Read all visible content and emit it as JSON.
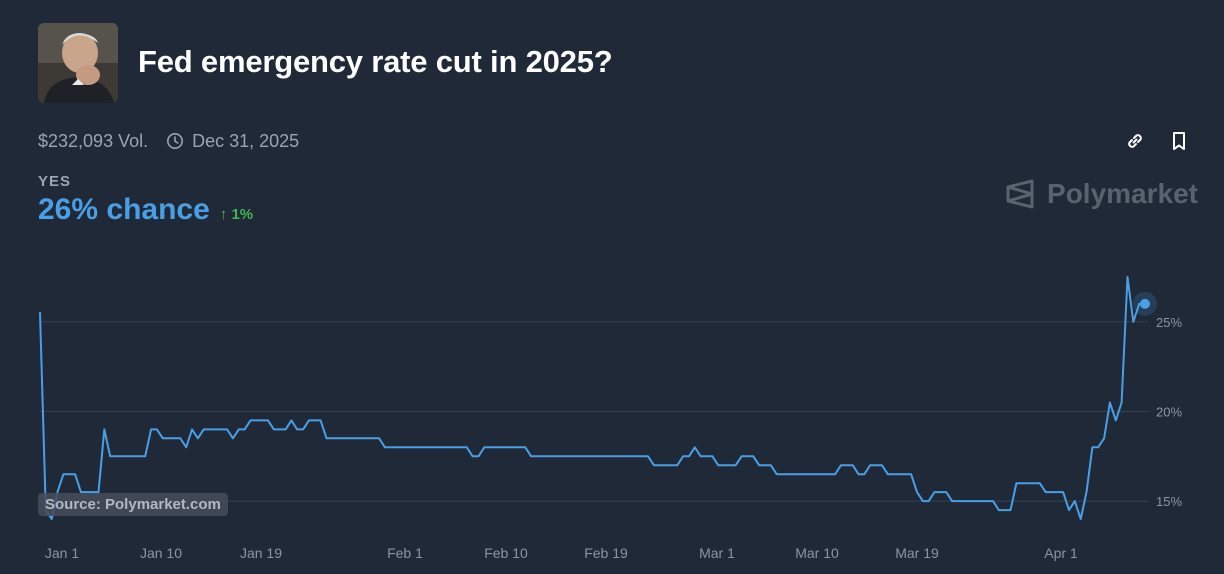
{
  "market": {
    "title": "Fed emergency rate cut in 2025?",
    "volume": "$232,093 Vol.",
    "end_date": "Dec 31, 2025",
    "outcome_label": "YES",
    "chance": "26% chance",
    "change": "1%",
    "change_direction": "up"
  },
  "icons": {
    "avatar": "portrait-photo",
    "clock": "clock-icon",
    "link": "link-icon",
    "bookmark": "bookmark-icon",
    "brand": "polymarket-logo-icon",
    "change_arrow": "arrow-up-icon"
  },
  "brand": {
    "name": "Polymarket"
  },
  "source": "Source: Polymarket.com",
  "colors": {
    "background": "#1f2937",
    "line": "#4a9fe4",
    "positive": "#3fb950",
    "muted": "#9aa4b2"
  },
  "chart_data": {
    "type": "line",
    "x_labels": [
      "Jan 1",
      "Jan 10",
      "Jan 19",
      "Feb 1",
      "Feb 10",
      "Feb 19",
      "Mar 1",
      "Mar 10",
      "Mar 19",
      "Apr 1"
    ],
    "y_ticks": [
      15,
      20,
      25
    ],
    "y_tick_labels": [
      "15%",
      "20%",
      "25%"
    ],
    "ylim": [
      13.5,
      28
    ],
    "grid": true,
    "series": [
      {
        "values": [
          25.5,
          14.5,
          14,
          15.5,
          16.5,
          16.5,
          16.5,
          15.5,
          15.5,
          15.5,
          15.5,
          19,
          17.5,
          17.5,
          17.5,
          17.5,
          17.5,
          17.5,
          17.5,
          19,
          19,
          18.5,
          18.5,
          18.5,
          18.5,
          18,
          19,
          18.5,
          19,
          19,
          19,
          19,
          19,
          18.5,
          19,
          19,
          19.5,
          19.5,
          19.5,
          19.5,
          19,
          19,
          19,
          19.5,
          19,
          19,
          19.5,
          19.5,
          19.5,
          18.5,
          18.5,
          18.5,
          18.5,
          18.5,
          18.5,
          18.5,
          18.5,
          18.5,
          18.5,
          18,
          18,
          18,
          18,
          18,
          18,
          18,
          18,
          18,
          18,
          18,
          18,
          18,
          18,
          18,
          17.5,
          17.5,
          18,
          18,
          18,
          18,
          18,
          18,
          18,
          18,
          17.5,
          17.5,
          17.5,
          17.5,
          17.5,
          17.5,
          17.5,
          17.5,
          17.5,
          17.5,
          17.5,
          17.5,
          17.5,
          17.5,
          17.5,
          17.5,
          17.5,
          17.5,
          17.5,
          17.5,
          17.5,
          17,
          17,
          17,
          17,
          17,
          17.5,
          17.5,
          18,
          17.5,
          17.5,
          17.5,
          17,
          17,
          17,
          17,
          17.5,
          17.5,
          17.5,
          17,
          17,
          17,
          16.5,
          16.5,
          16.5,
          16.5,
          16.5,
          16.5,
          16.5,
          16.5,
          16.5,
          16.5,
          16.5,
          17,
          17,
          17,
          16.5,
          16.5,
          17,
          17,
          17,
          16.5,
          16.5,
          16.5,
          16.5,
          16.5,
          15.5,
          15,
          15,
          15.5,
          15.5,
          15.5,
          15,
          15,
          15,
          15,
          15,
          15,
          15,
          15,
          14.5,
          14.5,
          14.5,
          16,
          16,
          16,
          16,
          16,
          15.5,
          15.5,
          15.5,
          15.5,
          14.5,
          15,
          14,
          15.5,
          18,
          18,
          18.5,
          20.5,
          19.5,
          20.5,
          27.5,
          25,
          26,
          26
        ]
      }
    ]
  }
}
